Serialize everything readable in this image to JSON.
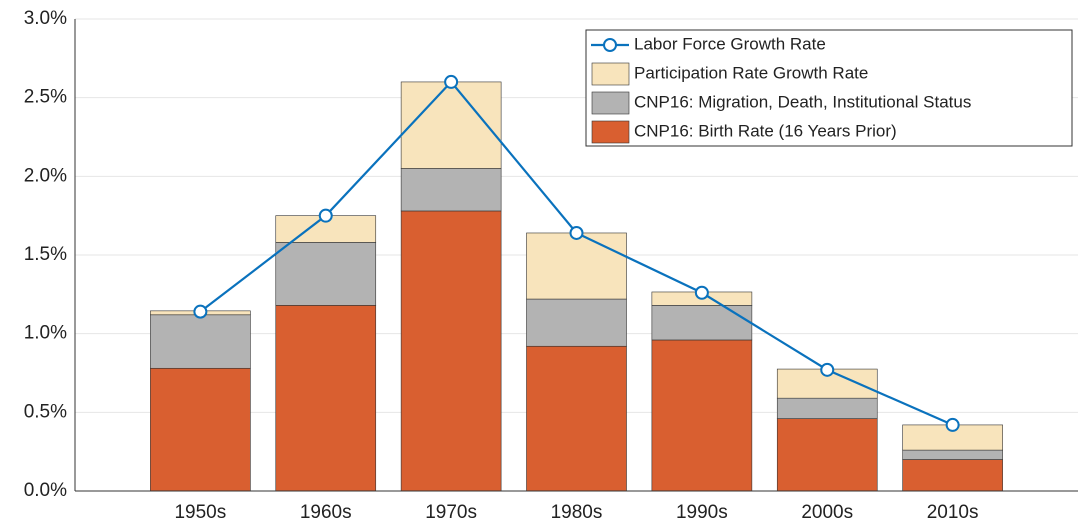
{
  "chart_data": {
    "type": "stacked-bar-line",
    "categories": [
      "1950s",
      "1960s",
      "1970s",
      "1980s",
      "1990s",
      "2000s",
      "2010s"
    ],
    "series": [
      {
        "name": "CNP16: Birth Rate (16 Years Prior)",
        "kind": "bar",
        "color": "#d95f30",
        "values": [
          0.78,
          1.18,
          1.78,
          0.92,
          0.96,
          0.46,
          0.2
        ]
      },
      {
        "name": "CNP16: Migration, Death, Institutional Status",
        "kind": "bar",
        "color": "#b3b3b3",
        "values": [
          0.34,
          0.4,
          0.27,
          0.3,
          0.22,
          0.13,
          0.06
        ]
      },
      {
        "name": "Participation Rate Growth Rate",
        "kind": "bar",
        "color": "#f8e4bc",
        "values": [
          0.025,
          0.17,
          0.55,
          0.42,
          0.085,
          0.185,
          0.16
        ]
      },
      {
        "name": "Labor Force Growth Rate",
        "kind": "line",
        "color": "#0a72bd",
        "values": [
          1.14,
          1.75,
          2.6,
          1.64,
          1.26,
          0.77,
          0.42
        ]
      }
    ],
    "ylim": [
      0,
      3
    ],
    "yticks": [
      {
        "value": 0,
        "label": "0.0%"
      },
      {
        "value": 0.5,
        "label": "0.5%"
      },
      {
        "value": 1,
        "label": "1.0%"
      },
      {
        "value": 1.5,
        "label": "1.5%"
      },
      {
        "value": 2,
        "label": "2.0%"
      },
      {
        "value": 2.5,
        "label": "2.5%"
      },
      {
        "value": 3,
        "label": "3.0%"
      }
    ],
    "grid": true,
    "legend": "upper right"
  }
}
